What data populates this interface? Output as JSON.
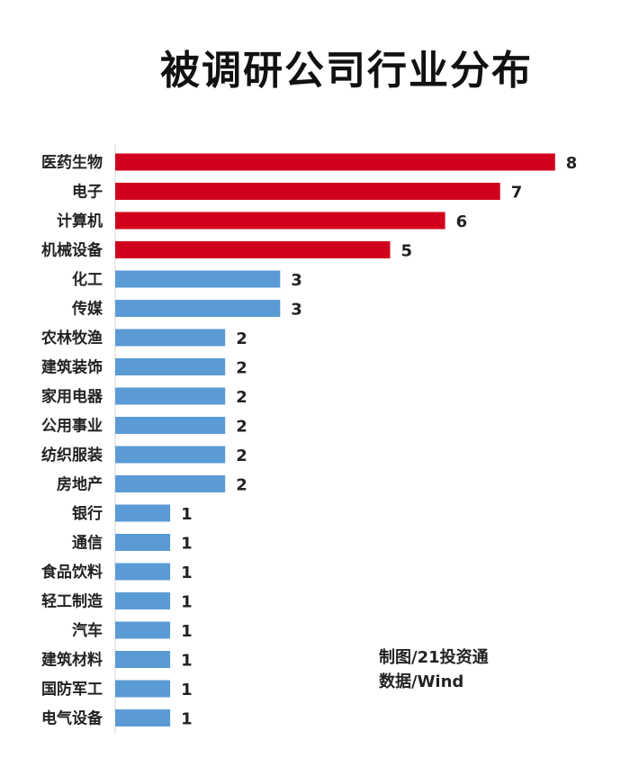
{
  "chart_data": {
    "type": "bar",
    "orientation": "horizontal",
    "title": "被调研公司行业分布",
    "categories": [
      "医药生物",
      "电子",
      "计算机",
      "机械设备",
      "化工",
      "传媒",
      "农林牧渔",
      "建筑装饰",
      "家用电器",
      "公用事业",
      "纺织服装",
      "房地产",
      "银行",
      "通信",
      "食品饮料",
      "轻工制造",
      "汽车",
      "建筑材料",
      "国防军工",
      "电气设备"
    ],
    "values": [
      8,
      7,
      6,
      5,
      3,
      3,
      2,
      2,
      2,
      2,
      2,
      2,
      1,
      1,
      1,
      1,
      1,
      1,
      1,
      1
    ],
    "colors": {
      "top": "#d0021b",
      "rest": "#5b9bd5"
    },
    "highlight_top_n": 4,
    "xlim": [
      0,
      8
    ],
    "grid": false,
    "legend": "none"
  },
  "notes": {
    "source_line1": "制图/21投资通",
    "source_line2": "数据/Wind"
  }
}
